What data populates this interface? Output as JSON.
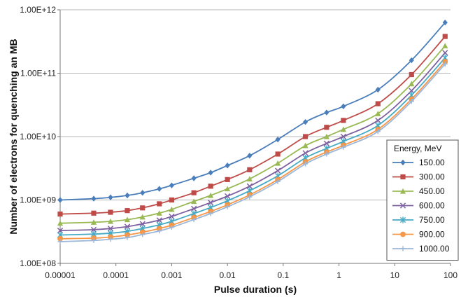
{
  "chart_data": {
    "type": "line",
    "title": "",
    "xlabel": "Pulse duration (s)",
    "ylabel": "Number of electrons for quenching an MB",
    "xscale": "log",
    "yscale": "log",
    "xlim": [
      1e-05,
      100
    ],
    "ylim": [
      100000000,
      1000000000000
    ],
    "x_tick_labels": [
      "0.00001",
      "0.0001",
      "0.001",
      "0.01",
      "0.1",
      "1",
      "10",
      "100"
    ],
    "y_tick_labels": [
      "1.00E+08",
      "1.00E+09",
      "1.00E+10",
      "1.00E+11",
      "1.00E+12"
    ],
    "grid": "horizontal",
    "legend": {
      "title": "Energy, MeV",
      "placement": "right"
    },
    "x": [
      1e-05,
      4e-05,
      8e-05,
      0.00016,
      0.0003,
      0.0006,
      0.001,
      0.0025,
      0.005,
      0.01,
      0.025,
      0.08,
      0.25,
      0.6,
      1.2,
      5,
      20,
      80
    ],
    "series": [
      {
        "name": "150.00",
        "color": "#4a7ebb",
        "marker": "diamond",
        "values": [
          1000000000.0,
          1050000000.0,
          1100000000.0,
          1180000000.0,
          1300000000.0,
          1500000000.0,
          1700000000.0,
          2200000000.0,
          2700000000.0,
          3500000000.0,
          5000000000.0,
          9000000000.0,
          17000000000.0,
          24000000000.0,
          30000000000.0,
          55000000000.0,
          160000000000.0,
          630000000000.0
        ]
      },
      {
        "name": "300.00",
        "color": "#be4b48",
        "marker": "square",
        "values": [
          600000000.0,
          620000000.0,
          640000000.0,
          680000000.0,
          750000000.0,
          870000000.0,
          1000000000.0,
          1300000000.0,
          1650000000.0,
          2100000000.0,
          3000000000.0,
          5300000000.0,
          10000000000.0,
          14000000000.0,
          18000000000.0,
          33000000000.0,
          95000000000.0,
          380000000000.0
        ]
      },
      {
        "name": "450.00",
        "color": "#98b954",
        "marker": "triangle",
        "values": [
          430000000.0,
          445000000.0,
          460000000.0,
          490000000.0,
          540000000.0,
          620000000.0,
          710000000.0,
          950000000.0,
          1180000000.0,
          1500000000.0,
          2150000000.0,
          3800000000.0,
          7200000000.0,
          10000000000.0,
          13000000000.0,
          23000000000.0,
          68000000000.0,
          270000000000.0
        ]
      },
      {
        "name": "600.00",
        "color": "#7d60a0",
        "marker": "x",
        "values": [
          330000000.0,
          340000000.0,
          355000000.0,
          380000000.0,
          420000000.0,
          480000000.0,
          550000000.0,
          730000000.0,
          910000000.0,
          1150000000.0,
          1650000000.0,
          2900000000.0,
          5500000000.0,
          7800000000.0,
          10000000000.0,
          18000000000.0,
          53000000000.0,
          210000000000.0
        ]
      },
      {
        "name": "750.00",
        "color": "#46aac5",
        "marker": "star",
        "values": [
          280000000.0,
          290000000.0,
          300000000.0,
          320000000.0,
          355000000.0,
          405000000.0,
          460000000.0,
          610000000.0,
          760000000.0,
          970000000.0,
          1400000000.0,
          2400000000.0,
          4600000000.0,
          6500000000.0,
          8400000000.0,
          15000000000.0,
          45000000000.0,
          175000000000.0
        ]
      },
      {
        "name": "900.00",
        "color": "#f79646",
        "marker": "circle",
        "values": [
          245000000.0,
          250000000.0,
          260000000.0,
          280000000.0,
          310000000.0,
          355000000.0,
          400000000.0,
          530000000.0,
          660000000.0,
          840000000.0,
          1200000000.0,
          2100000000.0,
          4000000000.0,
          5700000000.0,
          7300000000.0,
          13000000000.0,
          39000000000.0,
          152000000000.0
        ]
      },
      {
        "name": "1000.00",
        "color": "#9bb7d9",
        "marker": "plus",
        "values": [
          220000000.0,
          230000000.0,
          240000000.0,
          255000000.0,
          285000000.0,
          325000000.0,
          370000000.0,
          490000000.0,
          610000000.0,
          780000000.0,
          1120000000.0,
          1950000000.0,
          3700000000.0,
          5300000000.0,
          6800000000.0,
          12000000000.0,
          36000000000.0,
          140000000000.0
        ]
      }
    ]
  }
}
